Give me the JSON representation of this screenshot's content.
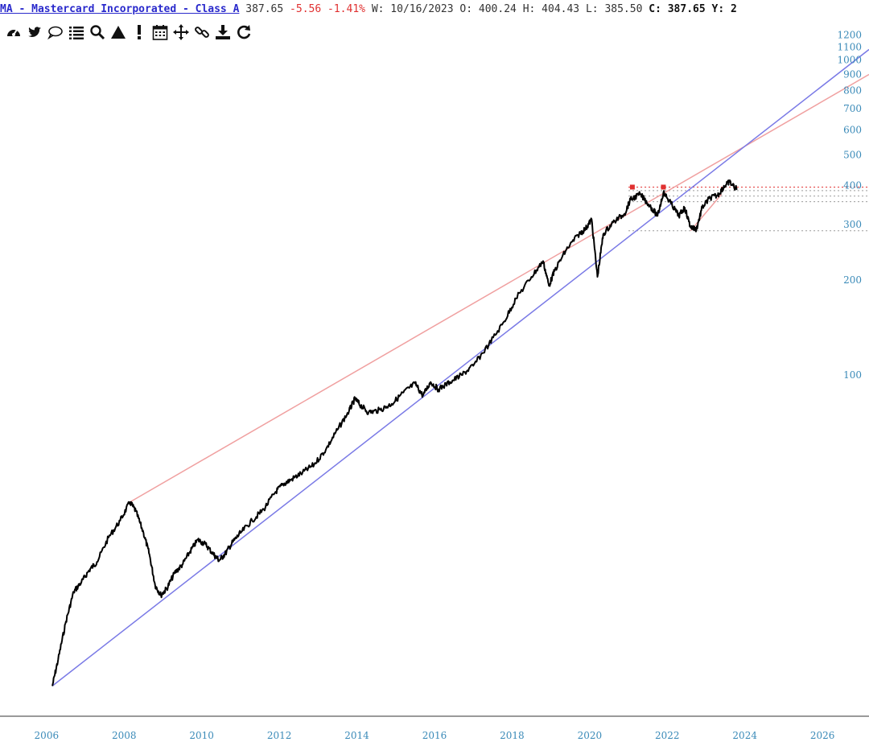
{
  "header": {
    "title": "MA - Mastercard Incorporated - Class A",
    "last": "387.65",
    "change": "-5.56",
    "change_pct": "-1.41%",
    "week_label": "W:",
    "date": "10/16/2023",
    "open_label": "O:",
    "open": "400.24",
    "high_label": "H:",
    "high": "404.43",
    "low_label": "L:",
    "low": "385.50",
    "close_label": "C:",
    "close": "387.65",
    "trailing": "Y: 2"
  },
  "toolbar": {
    "icons": [
      "dashboard-icon",
      "twitter-icon",
      "comment-icon",
      "list-icon",
      "search-icon",
      "triangle-icon",
      "exclamation-icon",
      "calendar-icon",
      "move-icon",
      "link-icon",
      "download-icon",
      "refresh-icon"
    ]
  },
  "colors": {
    "price": "#000000",
    "resistance_line": "#f0a0a0",
    "support_line": "#7a7ae6",
    "marker": "#e03030",
    "axis_text": "#3a8ab8",
    "negative": "#e03030"
  },
  "chart_data": {
    "type": "line",
    "scale": "log",
    "x_axis_ticks": [
      "2006",
      "2008",
      "2010",
      "2012",
      "2014",
      "2016",
      "2018",
      "2020",
      "2022",
      "2024",
      "2026"
    ],
    "y_axis_ticks": [
      100,
      200,
      300,
      400,
      500,
      600,
      700,
      800,
      900,
      1000,
      1100,
      1200
    ],
    "xlim": [
      2005.9,
      2027.2
    ],
    "ylim": [
      8.5,
      1300
    ],
    "series": [
      {
        "points": [
          [
            2006.15,
            10.3
          ],
          [
            2006.3,
            12.5
          ],
          [
            2006.5,
            16.5
          ],
          [
            2006.7,
            20.5
          ],
          [
            2006.9,
            22.0
          ],
          [
            2007.1,
            24.0
          ],
          [
            2007.3,
            25.5
          ],
          [
            2007.6,
            30.5
          ],
          [
            2007.9,
            34.5
          ],
          [
            2008.15,
            39.5
          ],
          [
            2008.3,
            37.0
          ],
          [
            2008.5,
            31.5
          ],
          [
            2008.65,
            27.0
          ],
          [
            2008.8,
            21.5
          ],
          [
            2008.95,
            20.0
          ],
          [
            2009.1,
            21.0
          ],
          [
            2009.3,
            23.5
          ],
          [
            2009.5,
            25.0
          ],
          [
            2009.7,
            27.5
          ],
          [
            2009.9,
            30.0
          ],
          [
            2010.1,
            29.0
          ],
          [
            2010.3,
            27.0
          ],
          [
            2010.45,
            25.8
          ],
          [
            2010.6,
            27.0
          ],
          [
            2010.8,
            29.5
          ],
          [
            2011.0,
            31.5
          ],
          [
            2011.3,
            34.5
          ],
          [
            2011.6,
            37.5
          ],
          [
            2011.9,
            42.5
          ],
          [
            2012.1,
            45.0
          ],
          [
            2012.3,
            46.5
          ],
          [
            2012.6,
            49.0
          ],
          [
            2012.9,
            52.0
          ],
          [
            2013.2,
            58.0
          ],
          [
            2013.5,
            67.0
          ],
          [
            2013.8,
            77.0
          ],
          [
            2013.95,
            84.0
          ],
          [
            2014.1,
            80.0
          ],
          [
            2014.3,
            76.0
          ],
          [
            2014.6,
            77.5
          ],
          [
            2014.9,
            81.0
          ],
          [
            2015.2,
            88.0
          ],
          [
            2015.5,
            94.0
          ],
          [
            2015.7,
            86.0
          ],
          [
            2015.9,
            95.0
          ],
          [
            2016.1,
            90.0
          ],
          [
            2016.4,
            95.0
          ],
          [
            2016.7,
            100.0
          ],
          [
            2017.0,
            107.0
          ],
          [
            2017.4,
            125.0
          ],
          [
            2017.8,
            148.0
          ],
          [
            2018.1,
            175.0
          ],
          [
            2018.5,
            205.0
          ],
          [
            2018.8,
            230.0
          ],
          [
            2018.95,
            192.0
          ],
          [
            2019.1,
            215.0
          ],
          [
            2019.4,
            250.0
          ],
          [
            2019.7,
            278.0
          ],
          [
            2019.9,
            292.0
          ],
          [
            2020.05,
            312.0
          ],
          [
            2020.2,
            205.0
          ],
          [
            2020.35,
            280.0
          ],
          [
            2020.6,
            305.0
          ],
          [
            2020.9,
            325.0
          ],
          [
            2021.05,
            360.0
          ],
          [
            2021.3,
            375.0
          ],
          [
            2021.55,
            345.0
          ],
          [
            2021.75,
            320.0
          ],
          [
            2021.9,
            380.0
          ],
          [
            2022.1,
            350.0
          ],
          [
            2022.3,
            320.0
          ],
          [
            2022.45,
            340.0
          ],
          [
            2022.6,
            295.0
          ],
          [
            2022.75,
            290.0
          ],
          [
            2022.9,
            340.0
          ],
          [
            2023.1,
            365.0
          ],
          [
            2023.3,
            372.0
          ],
          [
            2023.45,
            395.0
          ],
          [
            2023.6,
            410.0
          ],
          [
            2023.8,
            387.65
          ]
        ]
      }
    ],
    "resistance_line": [
      [
        2008.15,
        39.5
      ],
      [
        2027.2,
        900.0
      ]
    ],
    "support_line": [
      [
        2006.15,
        10.3
      ],
      [
        2027.2,
        1080.0
      ]
    ],
    "short_support": [
      [
        2022.6,
        287.0
      ],
      [
        2023.4,
        375.0
      ]
    ],
    "horizontal_levels": [
      {
        "value": 395,
        "color": "#e03030"
      },
      {
        "value": 385,
        "color": "#999999"
      },
      {
        "value": 370,
        "color": "#999999"
      },
      {
        "value": 355,
        "color": "#999999"
      },
      {
        "value": 287,
        "color": "#999999"
      }
    ],
    "markers": [
      [
        2021.1,
        395
      ],
      [
        2021.9,
        395
      ]
    ],
    "grid": false,
    "legend": "none"
  }
}
